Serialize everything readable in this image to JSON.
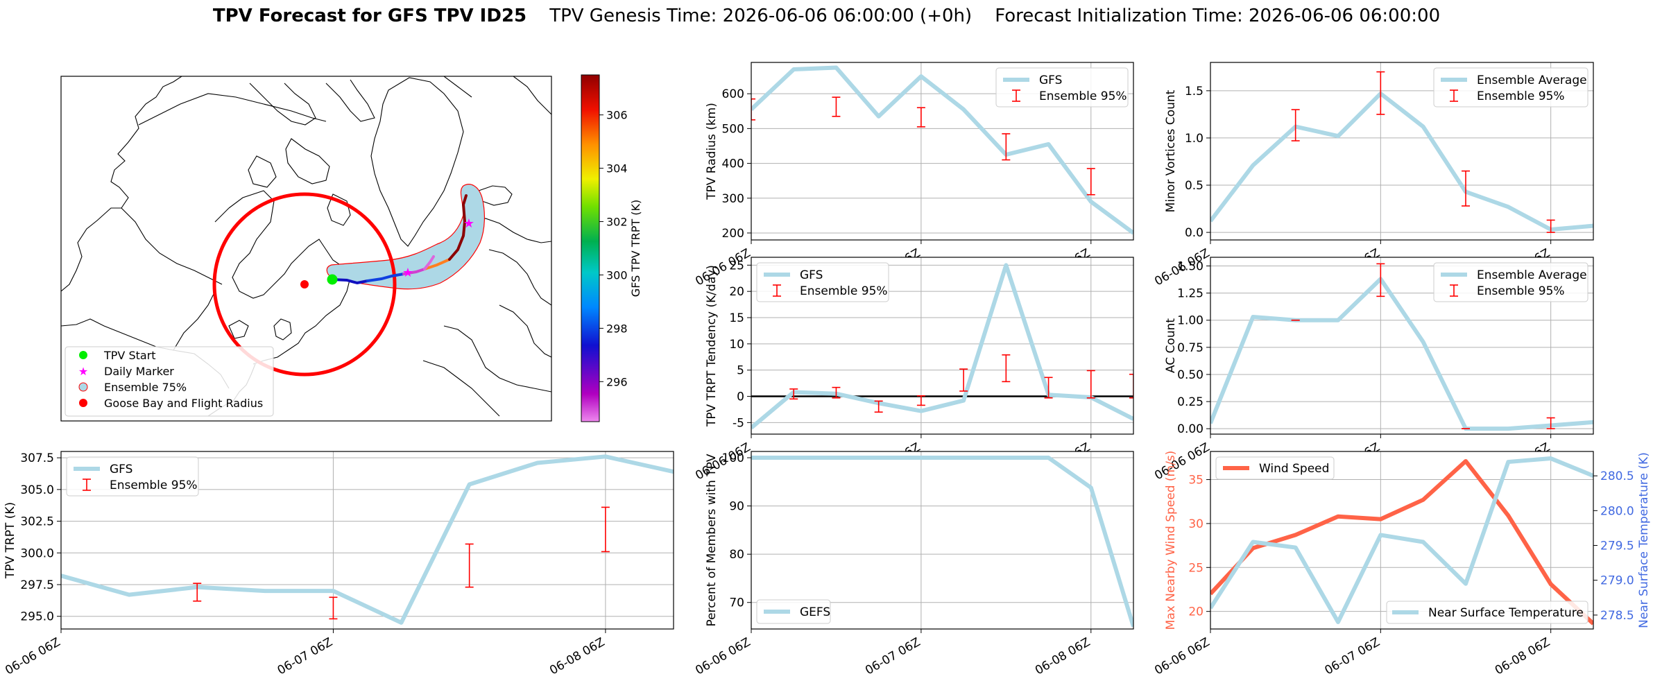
{
  "title": {
    "bold": "TPV Forecast for GFS TPV ID25",
    "genesis": "TPV Genesis Time: 2026-06-06 06:00:00 (+0h)",
    "init": "Forecast Initialization Time: 2026-06-06 06:00:00"
  },
  "colors": {
    "gfs": "#add8e6",
    "ensemble": "#ff0000",
    "wind": "#ff6347",
    "temp": "#add8e6",
    "wind_axis": "#ff6347",
    "temp_axis": "#4169e1",
    "zero_line": "#000000"
  },
  "map": {
    "legend": [
      "TPV Start",
      "Daily Marker",
      "Ensemble 75%",
      "Goose Bay and Flight Radius"
    ],
    "colorbar_label": "GFS TPV TRPT (K)",
    "colorbar_ticks": [
      296,
      298,
      300,
      302,
      304,
      306
    ],
    "colorbar_range": [
      294.5,
      307.5
    ]
  },
  "chart_data": [
    {
      "id": "radius",
      "type": "line",
      "ylabel": "TPV Radius (km)",
      "x_range": [
        0,
        54
      ],
      "ylim": [
        180,
        690
      ],
      "yticks": [
        200,
        300,
        400,
        500,
        600
      ],
      "xtick_positions": [
        0,
        24,
        48
      ],
      "xticklabels": [
        "06-06 06Z",
        "06-07 06Z",
        "06-08 06Z"
      ],
      "legend_pos": "top-right",
      "series": [
        {
          "name": "GFS",
          "kind": "line",
          "x": [
            0,
            6,
            12,
            18,
            24,
            30,
            36,
            42,
            48,
            54
          ],
          "y": [
            555,
            670,
            675,
            535,
            650,
            555,
            425,
            455,
            290,
            200
          ]
        },
        {
          "name": "Ensemble 95%",
          "kind": "errorbar",
          "x": [
            0,
            6,
            12,
            18,
            24,
            30,
            36,
            42,
            48,
            54
          ],
          "low": [
            null,
            null,
            535,
            null,
            505,
            null,
            410,
            null,
            310,
            null
          ],
          "high": [
            null,
            null,
            590,
            null,
            560,
            null,
            485,
            null,
            385,
            null
          ],
          "edge": [
            {
              "x": 0,
              "low": 525,
              "high": 585
            }
          ]
        }
      ]
    },
    {
      "id": "minor",
      "type": "line",
      "ylabel": "Minor Vortices Count",
      "x_range": [
        0,
        54
      ],
      "ylim": [
        -0.08,
        1.8
      ],
      "yticks": [
        0.0,
        0.5,
        1.0,
        1.5
      ],
      "xtick_positions": [
        0,
        24,
        48
      ],
      "xticklabels": [
        "06-06 06Z",
        "06-07 06Z",
        "06-08 06Z"
      ],
      "legend_pos": "top-right",
      "series": [
        {
          "name": "Ensemble Average",
          "kind": "line",
          "x": [
            0,
            6,
            12,
            18,
            24,
            30,
            36,
            42,
            48,
            54
          ],
          "y": [
            0.12,
            0.71,
            1.12,
            1.02,
            1.47,
            1.12,
            0.43,
            0.27,
            0.03,
            0.07
          ]
        },
        {
          "name": "Ensemble 95%",
          "kind": "errorbar",
          "x": [
            12,
            24,
            36,
            48
          ],
          "low": [
            0.97,
            1.25,
            0.28,
            0.0
          ],
          "high": [
            1.3,
            1.7,
            0.65,
            0.13
          ]
        }
      ]
    },
    {
      "id": "tendency",
      "type": "line",
      "ylabel": "TPV TRPT Tendency (K/day)",
      "x_range": [
        0,
        54
      ],
      "ylim": [
        -7.2,
        26.5
      ],
      "yticks": [
        -5,
        0,
        5,
        10,
        15,
        20,
        25
      ],
      "xtick_positions": [
        0,
        24,
        48
      ],
      "xticklabels": [
        "06-06 06Z",
        "06-07 06Z",
        "06-08 06Z"
      ],
      "legend_pos": "top-left",
      "zero_line": true,
      "series": [
        {
          "name": "GFS",
          "kind": "line",
          "x": [
            0,
            6,
            12,
            18,
            24,
            30,
            36,
            42,
            48,
            54
          ],
          "y": [
            -6,
            0.8,
            0.5,
            -1.3,
            -2.8,
            -0.8,
            25,
            0.3,
            -0.2,
            -4.3
          ]
        },
        {
          "name": "Ensemble 95%",
          "kind": "errorbar",
          "x": [
            6,
            12,
            18,
            24,
            30,
            36,
            42,
            48,
            54
          ],
          "low": [
            -0.5,
            -0.3,
            -3.0,
            -1.7,
            1.0,
            2.8,
            -0.3,
            -0.3,
            -0.3
          ],
          "high": [
            1.4,
            1.7,
            -0.9,
            0.1,
            5.2,
            7.9,
            3.6,
            4.9,
            4.2
          ]
        }
      ]
    },
    {
      "id": "ac",
      "type": "line",
      "ylabel": "AC Count",
      "x_range": [
        0,
        54
      ],
      "ylim": [
        -0.05,
        1.58
      ],
      "yticks": [
        0.0,
        0.25,
        0.5,
        0.75,
        1.0,
        1.25,
        1.5
      ],
      "xtick_positions": [
        0,
        24,
        48
      ],
      "xticklabels": [
        "06-06 06Z",
        "06-07 06Z",
        "06-08 06Z"
      ],
      "legend_pos": "top-right",
      "series": [
        {
          "name": "Ensemble Average",
          "kind": "line",
          "x": [
            0,
            6,
            12,
            18,
            24,
            30,
            36,
            42,
            48,
            54
          ],
          "y": [
            0.05,
            1.03,
            1.0,
            1.0,
            1.38,
            0.8,
            0.0,
            0.0,
            0.03,
            0.06
          ]
        },
        {
          "name": "Ensemble 95%",
          "kind": "errorbar",
          "x": [
            12,
            24,
            36,
            48
          ],
          "low": [
            1.0,
            1.22,
            0.0,
            0.0
          ],
          "high": [
            1.0,
            1.52,
            0.0,
            0.1
          ]
        }
      ]
    },
    {
      "id": "trpt",
      "type": "line",
      "ylabel": "TPV TRPT (K)",
      "x_range": [
        0,
        54
      ],
      "ylim": [
        294.0,
        308.0
      ],
      "yticks": [
        295.0,
        297.5,
        300.0,
        302.5,
        305.0,
        307.5
      ],
      "xtick_positions": [
        0,
        24,
        48
      ],
      "xticklabels": [
        "06-06 06Z",
        "06-07 06Z",
        "06-08 06Z"
      ],
      "legend_pos": "top-left",
      "series": [
        {
          "name": "GFS",
          "kind": "line",
          "x": [
            0,
            6,
            12,
            18,
            24,
            30,
            36,
            42,
            48,
            54
          ],
          "y": [
            298.2,
            296.7,
            297.3,
            297.0,
            297.0,
            294.5,
            305.4,
            307.1,
            307.6,
            306.4
          ]
        },
        {
          "name": "Ensemble 95%",
          "kind": "errorbar",
          "x": [
            12,
            24,
            36,
            48
          ],
          "low": [
            296.2,
            294.8,
            297.3,
            300.1
          ],
          "high": [
            297.6,
            296.5,
            300.7,
            303.6
          ]
        }
      ]
    },
    {
      "id": "percent",
      "type": "line",
      "ylabel": "Percent of Members with TPV",
      "x_range": [
        0,
        54
      ],
      "ylim": [
        64.5,
        101.3
      ],
      "yticks": [
        70,
        80,
        90,
        100
      ],
      "xtick_positions": [
        0,
        24,
        48
      ],
      "xticklabels": [
        "06-06 06Z",
        "06-07 06Z",
        "06-08 06Z"
      ],
      "legend_pos": "bottom-left",
      "series": [
        {
          "name": "GEFS",
          "kind": "line",
          "x": [
            0,
            6,
            12,
            18,
            24,
            30,
            36,
            42,
            48,
            54
          ],
          "y": [
            100,
            100,
            100,
            100,
            100,
            100,
            100,
            100,
            93.8,
            65
          ]
        }
      ]
    },
    {
      "id": "wind_temp",
      "type": "line",
      "ylabel": "Max Nearby Wind Speed (m/s)",
      "y2label": "Near Surface Temperature (K)",
      "x_range": [
        0,
        54
      ],
      "ylim": [
        18,
        38.2
      ],
      "y2lim": [
        278.3,
        280.85
      ],
      "yticks": [
        20,
        25,
        30,
        35
      ],
      "y2ticks": [
        278.5,
        279.0,
        279.5,
        280.0,
        280.5
      ],
      "xtick_positions": [
        0,
        24,
        48
      ],
      "xticklabels": [
        "06-06 06Z",
        "06-07 06Z",
        "06-08 06Z"
      ],
      "series": [
        {
          "name": "Wind Speed",
          "kind": "line",
          "axis": "left",
          "x": [
            0,
            6,
            12,
            18,
            24,
            30,
            36,
            42,
            48,
            54
          ],
          "y": [
            22,
            27.2,
            28.7,
            30.8,
            30.5,
            32.7,
            37.1,
            30.9,
            23.1,
            18.6
          ]
        },
        {
          "name": "Near Surface Temperature",
          "kind": "line",
          "axis": "right",
          "x": [
            0,
            6,
            12,
            18,
            24,
            30,
            36,
            42,
            48,
            54
          ],
          "y": [
            278.6,
            279.55,
            279.47,
            278.4,
            279.65,
            279.55,
            278.95,
            280.7,
            280.75,
            280.5
          ]
        }
      ]
    }
  ]
}
